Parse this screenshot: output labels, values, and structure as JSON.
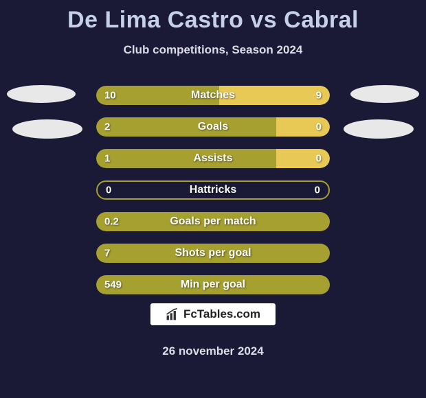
{
  "title": "De Lima Castro vs Cabral",
  "subtitle": "Club competitions, Season 2024",
  "colors": {
    "background": "#1a1a36",
    "title_color": "#c6d0e8",
    "text_color": "#dcdce8",
    "bar_left": "#a5a030",
    "bar_right": "#e8c956",
    "bar_empty": "#3a3a55",
    "ellipse": "#e8e8e8"
  },
  "stats": [
    {
      "label": "Matches",
      "left_value": "10",
      "right_value": "9",
      "left_pct": 52.6,
      "right_pct": 47.4,
      "left_color": "#a5a030",
      "right_color": "#e8c956"
    },
    {
      "label": "Goals",
      "left_value": "2",
      "right_value": "0",
      "left_pct": 77,
      "right_pct": 23,
      "left_color": "#a5a030",
      "right_color": "#e8c956"
    },
    {
      "label": "Assists",
      "left_value": "1",
      "right_value": "0",
      "left_pct": 77,
      "right_pct": 23,
      "left_color": "#a5a030",
      "right_color": "#e8c956"
    },
    {
      "label": "Hattricks",
      "left_value": "0",
      "right_value": "0",
      "left_pct": 0,
      "right_pct": 0,
      "left_color": "#3a3a55",
      "right_color": "#3a3a55"
    },
    {
      "label": "Goals per match",
      "left_value": "0.2",
      "right_value": "",
      "left_pct": 100,
      "right_pct": 0,
      "left_color": "#a5a030",
      "right_color": "#e8c956"
    },
    {
      "label": "Shots per goal",
      "left_value": "7",
      "right_value": "",
      "left_pct": 100,
      "right_pct": 0,
      "left_color": "#a5a030",
      "right_color": "#e8c956"
    },
    {
      "label": "Min per goal",
      "left_value": "549",
      "right_value": "",
      "left_pct": 100,
      "right_pct": 0,
      "left_color": "#a5a030",
      "right_color": "#e8c956"
    }
  ],
  "footer": {
    "brand": "FcTables.com",
    "date": "26 november 2024"
  }
}
